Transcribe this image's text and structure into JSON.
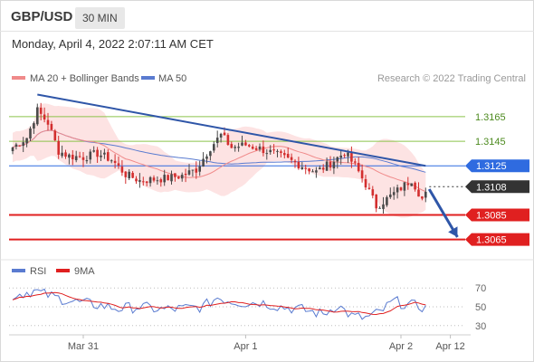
{
  "header": {
    "symbol": "GBP/USD",
    "interval": "30 MIN",
    "timestamp": "Monday, April 4, 2022 2:07:11 AM CET"
  },
  "legend": {
    "ma20_bb": "MA 20 + Bollinger Bands",
    "ma50": "MA 50",
    "credit": "Research © 2022 Trading Central",
    "rsi": "RSI",
    "ma9": "9MA"
  },
  "colors": {
    "ma20": "#f08a8a",
    "bollinger_fill": "#fde3e3",
    "ma50": "#5a7bd0",
    "bull_candle": "#4a4a4a",
    "bear_candle": "#d32f2f",
    "trendline": "#2f56a8",
    "resistance_green": "#8bc34a",
    "support_red": "#e02020",
    "pivot_blue": "#2f6be0",
    "current_price": "#333333",
    "rsi_line": "#5a7bd0",
    "rsi_ma": "#e02020"
  },
  "chart_data": [
    {
      "type": "candlestick",
      "title": "GBP/USD",
      "ylim": [
        1.305,
        1.319
      ],
      "x_ticks": [
        "Mar 31",
        "Apr 1",
        "Apr 2",
        "Apr 12"
      ],
      "x_tick_bars": [
        20,
        66,
        110,
        124
      ],
      "bar_count": 118,
      "trendline": {
        "start": [
          7,
          1.3183
        ],
        "end": [
          117,
          1.3125
        ]
      },
      "levels": [
        {
          "value": 1.3165,
          "label": "1.3165",
          "role": "resistance-2"
        },
        {
          "value": 1.3145,
          "label": "1.3145",
          "role": "resistance-1"
        },
        {
          "value": 1.3125,
          "label": "1.3125",
          "role": "pivot"
        },
        {
          "value": 1.3108,
          "label": "1.3108",
          "role": "last-price"
        },
        {
          "value": 1.3085,
          "label": "1.3085",
          "role": "support-1"
        },
        {
          "value": 1.3065,
          "label": "1.3065",
          "role": "support-2"
        }
      ],
      "arrow": {
        "from": [
          118,
          1.3106
        ],
        "to": [
          126,
          1.3067
        ]
      },
      "close_keypoints": [
        [
          0,
          1.314
        ],
        [
          4,
          1.3148
        ],
        [
          7,
          1.317
        ],
        [
          10,
          1.316
        ],
        [
          13,
          1.3137
        ],
        [
          16,
          1.3133
        ],
        [
          20,
          1.3132
        ],
        [
          24,
          1.3135
        ],
        [
          28,
          1.313
        ],
        [
          32,
          1.3118
        ],
        [
          36,
          1.3113
        ],
        [
          40,
          1.3114
        ],
        [
          44,
          1.3115
        ],
        [
          48,
          1.3117
        ],
        [
          52,
          1.3122
        ],
        [
          56,
          1.314
        ],
        [
          59,
          1.315
        ],
        [
          62,
          1.314
        ],
        [
          66,
          1.3142
        ],
        [
          70,
          1.3139
        ],
        [
          74,
          1.3135
        ],
        [
          78,
          1.313
        ],
        [
          82,
          1.3125
        ],
        [
          86,
          1.312
        ],
        [
          90,
          1.3127
        ],
        [
          94,
          1.3136
        ],
        [
          97,
          1.3125
        ],
        [
          100,
          1.311
        ],
        [
          103,
          1.3092
        ],
        [
          106,
          1.3098
        ],
        [
          110,
          1.3107
        ],
        [
          113,
          1.3114
        ],
        [
          116,
          1.3098
        ],
        [
          118,
          1.3105
        ]
      ]
    },
    {
      "type": "line",
      "series": [
        {
          "name": "RSI"
        },
        {
          "name": "9MA"
        }
      ],
      "ylim": [
        25,
        75
      ],
      "y_ticks": [
        70,
        50,
        30
      ],
      "rsi_keypoints": [
        [
          0,
          62
        ],
        [
          6,
          67
        ],
        [
          12,
          60
        ],
        [
          18,
          55
        ],
        [
          24,
          52
        ],
        [
          30,
          48
        ],
        [
          36,
          50
        ],
        [
          42,
          47
        ],
        [
          48,
          48
        ],
        [
          54,
          50
        ],
        [
          58,
          60
        ],
        [
          62,
          56
        ],
        [
          66,
          54
        ],
        [
          70,
          55
        ],
        [
          76,
          50
        ],
        [
          82,
          47
        ],
        [
          88,
          42
        ],
        [
          92,
          52
        ],
        [
          96,
          40
        ],
        [
          100,
          38
        ],
        [
          104,
          44
        ],
        [
          108,
          56
        ],
        [
          112,
          52
        ],
        [
          116,
          50
        ],
        [
          118,
          46
        ]
      ]
    }
  ]
}
